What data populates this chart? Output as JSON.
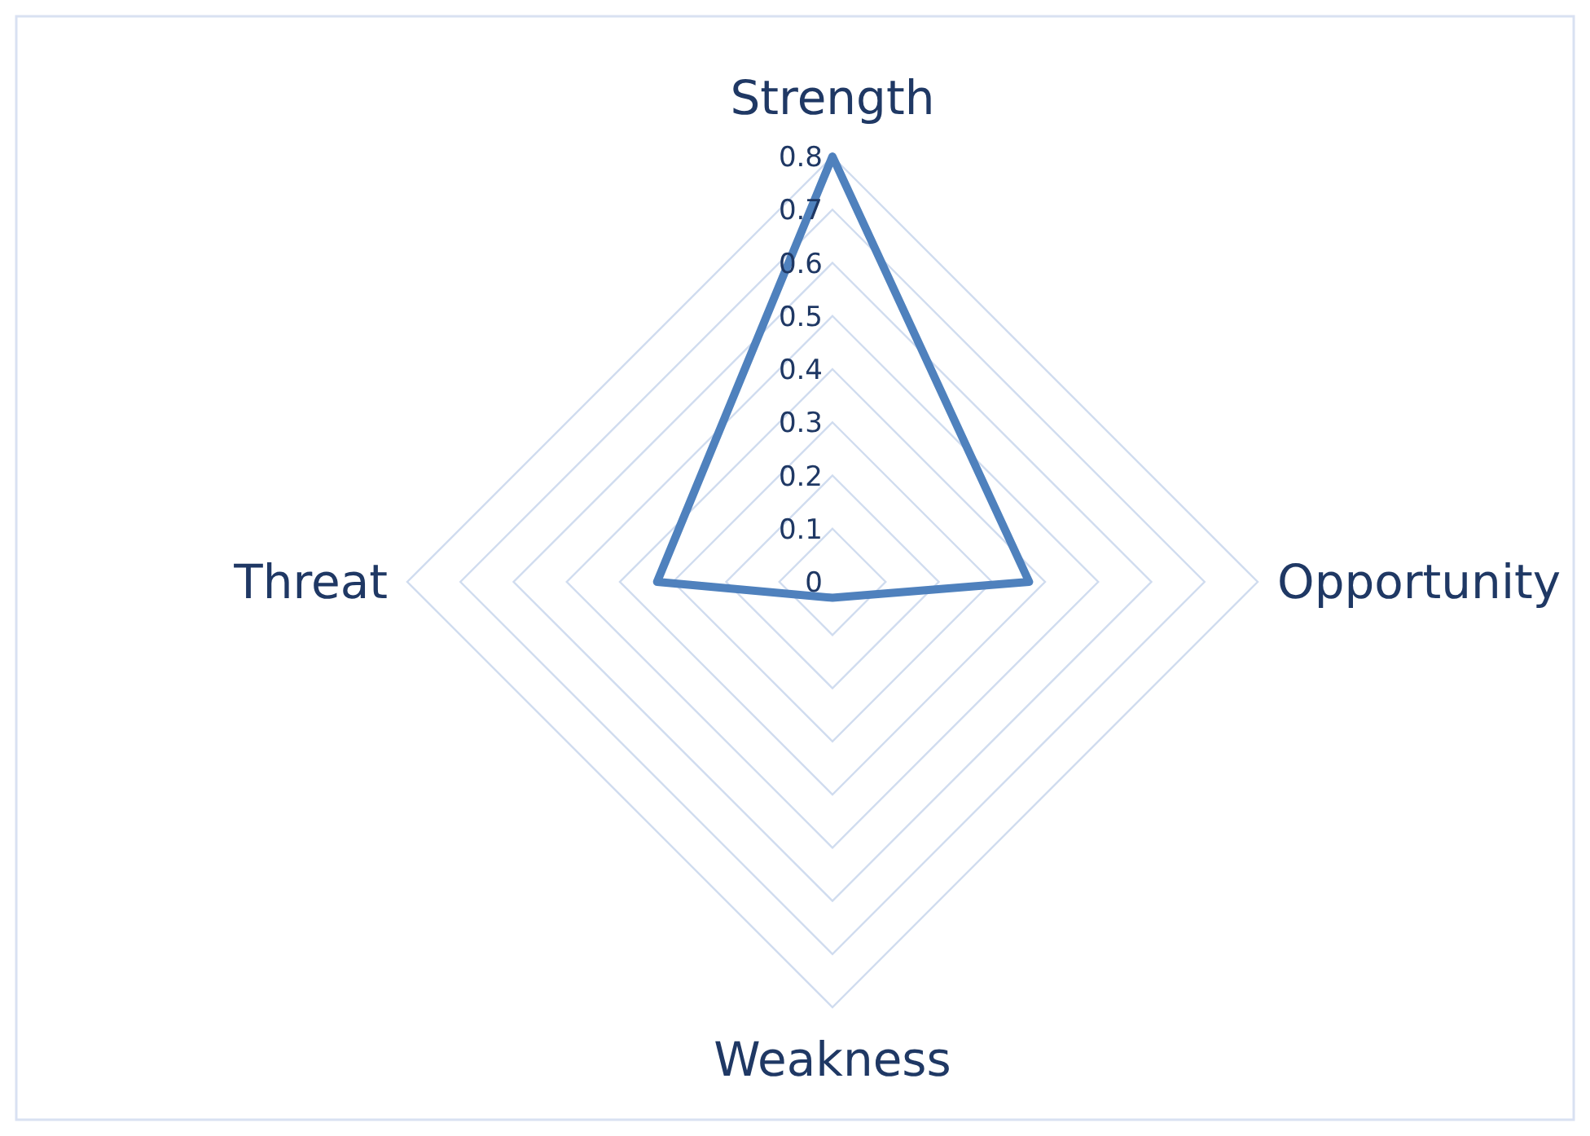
{
  "chart_data": {
    "type": "radar",
    "categories": [
      "Strength",
      "Opportunity",
      "Weakness",
      "Threat"
    ],
    "series": [
      {
        "color": "#4f81bd",
        "values": [
          0.8,
          0.37,
          0.03,
          0.33
        ]
      }
    ],
    "ylim": [
      0,
      0.8
    ],
    "yticks": [
      0,
      0.1,
      0.2,
      0.3,
      0.4,
      0.5,
      0.6,
      0.7,
      0.8
    ],
    "grid": true,
    "marker": "none",
    "line_style": "solid"
  }
}
